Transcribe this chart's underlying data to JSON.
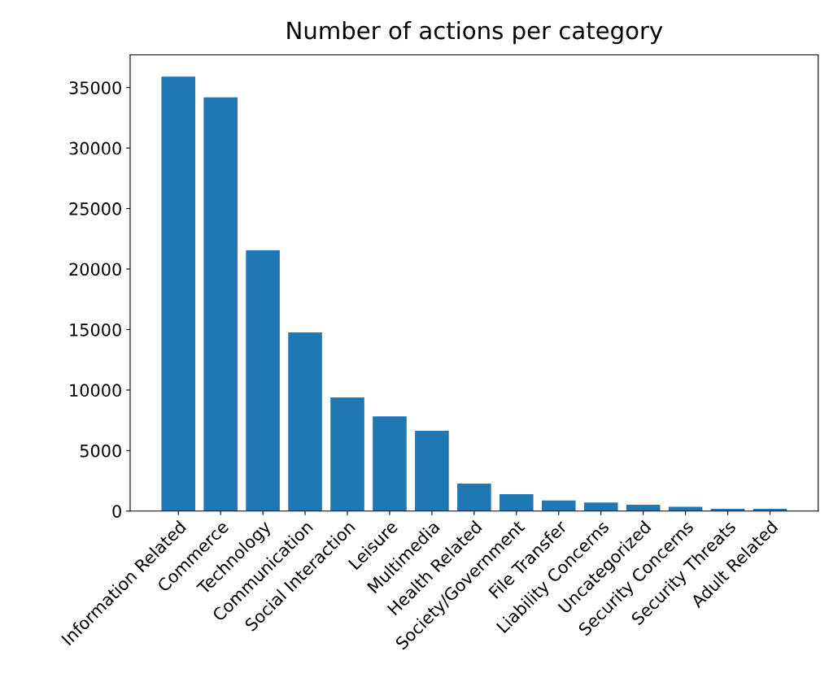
{
  "chart_data": {
    "type": "bar",
    "title": "Number of actions per category",
    "categories": [
      "Information Related",
      "Commerce",
      "Technology",
      "Communication",
      "Social Interaction",
      "Leisure",
      "Multimedia",
      "Health Related",
      "Society/Government",
      "File Transfer",
      "Liability Concerns",
      "Uncategorized",
      "Security Concerns",
      "Security Threats",
      "Adult Related"
    ],
    "values": [
      35900,
      34200,
      21550,
      14770,
      9390,
      7820,
      6630,
      2270,
      1390,
      880,
      700,
      520,
      360,
      180,
      180
    ],
    "color": "#1f77b4",
    "ylim": [
      0,
      37700
    ],
    "yticks": [
      0,
      5000,
      10000,
      15000,
      20000,
      25000,
      30000,
      35000
    ],
    "grid": false
  }
}
